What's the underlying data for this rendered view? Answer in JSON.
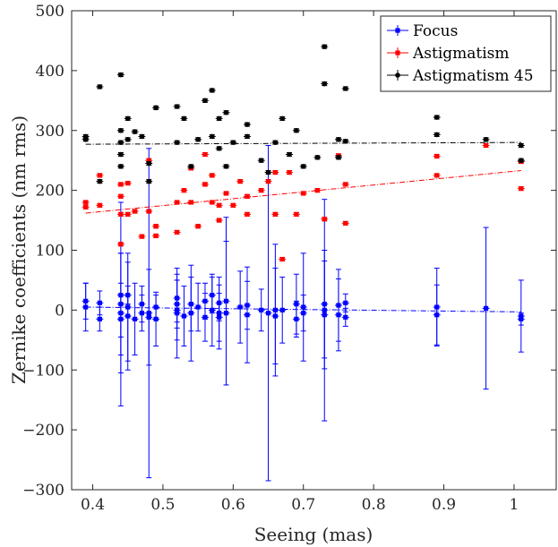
{
  "chart_data": {
    "type": "scatter",
    "xlabel": "Seeing (mas)",
    "ylabel": "Zernike coefficients (nm rms)",
    "xlim": [
      0.37,
      1.06
    ],
    "ylim": [
      -300,
      500
    ],
    "xticks": [
      0.4,
      0.5,
      0.6,
      0.7,
      0.8,
      0.9,
      1
    ],
    "xtick_labels": [
      "0.4",
      "0.5",
      "0.6",
      "0.7",
      "0.8",
      "0.9",
      "1"
    ],
    "yticks": [
      -300,
      -200,
      -100,
      0,
      100,
      200,
      300,
      400,
      500
    ],
    "ytick_labels": [
      "−300",
      "−200",
      "−100",
      "0",
      "100",
      "200",
      "300",
      "400",
      "500"
    ],
    "grid": false,
    "legend_position": "top-right",
    "series": [
      {
        "name": "Focus",
        "color": "#0000ff",
        "marker": "square",
        "fit": [
          [
            0.39,
            5
          ],
          [
            1.01,
            -3
          ]
        ],
        "points": [
          [
            0.39,
            15,
            30
          ],
          [
            0.39,
            5,
            40
          ],
          [
            0.41,
            12,
            20
          ],
          [
            0.41,
            -15,
            20
          ],
          [
            0.44,
            25,
            70
          ],
          [
            0.44,
            10,
            170
          ],
          [
            0.44,
            -5,
            100
          ],
          [
            0.44,
            -15,
            60
          ],
          [
            0.45,
            25,
            15
          ],
          [
            0.45,
            5,
            90
          ],
          [
            0.45,
            -10,
            90
          ],
          [
            0.46,
            -15,
            60
          ],
          [
            0.47,
            10,
            30
          ],
          [
            0.47,
            -5,
            30
          ],
          [
            0.48,
            -5,
            275
          ],
          [
            0.48,
            -12,
            80
          ],
          [
            0.49,
            5,
            20
          ],
          [
            0.49,
            -15,
            45
          ],
          [
            0.52,
            20,
            40
          ],
          [
            0.52,
            10,
            40
          ],
          [
            0.52,
            0,
            50
          ],
          [
            0.52,
            -5,
            75
          ],
          [
            0.53,
            -10,
            50
          ],
          [
            0.54,
            10,
            45
          ],
          [
            0.54,
            -5,
            80
          ],
          [
            0.55,
            5,
            40
          ],
          [
            0.56,
            15,
            30
          ],
          [
            0.56,
            -12,
            40
          ],
          [
            0.57,
            25,
            30
          ],
          [
            0.57,
            0,
            60
          ],
          [
            0.58,
            12,
            30
          ],
          [
            0.58,
            -5,
            60
          ],
          [
            0.58,
            -12,
            40
          ],
          [
            0.59,
            15,
            140
          ],
          [
            0.59,
            -5,
            120
          ],
          [
            0.61,
            5,
            60
          ],
          [
            0.62,
            8,
            40
          ],
          [
            0.62,
            -8,
            80
          ],
          [
            0.64,
            0,
            35
          ],
          [
            0.65,
            -5,
            280
          ],
          [
            0.66,
            0,
            110
          ],
          [
            0.66,
            -10,
            80
          ],
          [
            0.67,
            0,
            55
          ],
          [
            0.69,
            10,
            50
          ],
          [
            0.69,
            -15,
            30
          ],
          [
            0.7,
            5,
            90
          ],
          [
            0.7,
            -5,
            30
          ],
          [
            0.73,
            10,
            90
          ],
          [
            0.73,
            0,
            185
          ],
          [
            0.73,
            -8,
            90
          ],
          [
            0.75,
            8,
            60
          ],
          [
            0.75,
            -8,
            60
          ],
          [
            0.76,
            12,
            15
          ],
          [
            0.76,
            -12,
            15
          ],
          [
            0.89,
            5,
            65
          ],
          [
            0.89,
            -8,
            50
          ],
          [
            0.96,
            3,
            135
          ],
          [
            1.01,
            -10,
            60
          ],
          [
            1.01,
            -15,
            10
          ]
        ]
      },
      {
        "name": "Astigmatism",
        "color": "#ff0000",
        "marker": "square",
        "fit": [
          [
            0.39,
            162
          ],
          [
            1.01,
            233
          ]
        ],
        "points": [
          [
            0.39,
            180,
            3
          ],
          [
            0.39,
            172,
            3
          ],
          [
            0.41,
            225,
            3
          ],
          [
            0.41,
            175,
            3
          ],
          [
            0.44,
            210,
            3
          ],
          [
            0.44,
            190,
            3
          ],
          [
            0.44,
            160,
            3
          ],
          [
            0.44,
            110,
            3
          ],
          [
            0.45,
            212,
            3
          ],
          [
            0.45,
            160,
            3
          ],
          [
            0.46,
            165,
            3
          ],
          [
            0.47,
            123,
            3
          ],
          [
            0.48,
            250,
            3
          ],
          [
            0.48,
            165,
            3
          ],
          [
            0.49,
            140,
            3
          ],
          [
            0.49,
            124,
            3
          ],
          [
            0.52,
            180,
            3
          ],
          [
            0.52,
            130,
            3
          ],
          [
            0.53,
            200,
            3
          ],
          [
            0.54,
            237,
            3
          ],
          [
            0.54,
            180,
            3
          ],
          [
            0.55,
            140,
            3
          ],
          [
            0.56,
            260,
            3
          ],
          [
            0.56,
            210,
            3
          ],
          [
            0.57,
            225,
            3
          ],
          [
            0.57,
            180,
            3
          ],
          [
            0.58,
            175,
            3
          ],
          [
            0.58,
            150,
            3
          ],
          [
            0.59,
            195,
            3
          ],
          [
            0.6,
            175,
            3
          ],
          [
            0.61,
            215,
            3
          ],
          [
            0.62,
            190,
            3
          ],
          [
            0.62,
            160,
            3
          ],
          [
            0.64,
            200,
            3
          ],
          [
            0.65,
            215,
            3
          ],
          [
            0.66,
            230,
            3
          ],
          [
            0.66,
            160,
            3
          ],
          [
            0.67,
            85,
            3
          ],
          [
            0.68,
            230,
            3
          ],
          [
            0.69,
            160,
            3
          ],
          [
            0.7,
            195,
            3
          ],
          [
            0.72,
            200,
            3
          ],
          [
            0.73,
            152,
            3
          ],
          [
            0.75,
            258,
            3
          ],
          [
            0.76,
            210,
            3
          ],
          [
            0.76,
            145,
            3
          ],
          [
            0.89,
            257,
            3
          ],
          [
            0.89,
            225,
            3
          ],
          [
            0.96,
            275,
            3
          ],
          [
            1.01,
            248,
            3
          ],
          [
            1.01,
            203,
            3
          ]
        ]
      },
      {
        "name": "Astigmatism 45",
        "color": "#000000",
        "marker": "dot",
        "fit": [
          [
            0.39,
            277
          ],
          [
            1.01,
            280
          ]
        ],
        "points": [
          [
            0.39,
            290,
            3
          ],
          [
            0.39,
            285,
            3
          ],
          [
            0.41,
            373,
            3
          ],
          [
            0.41,
            215,
            3
          ],
          [
            0.44,
            393,
            3
          ],
          [
            0.44,
            300,
            3
          ],
          [
            0.44,
            280,
            3
          ],
          [
            0.44,
            260,
            3
          ],
          [
            0.44,
            240,
            3
          ],
          [
            0.45,
            320,
            3
          ],
          [
            0.45,
            285,
            3
          ],
          [
            0.46,
            298,
            3
          ],
          [
            0.47,
            290,
            3
          ],
          [
            0.48,
            245,
            3
          ],
          [
            0.48,
            215,
            3
          ],
          [
            0.49,
            338,
            3
          ],
          [
            0.52,
            340,
            3
          ],
          [
            0.52,
            280,
            3
          ],
          [
            0.53,
            320,
            3
          ],
          [
            0.54,
            240,
            3
          ],
          [
            0.55,
            285,
            3
          ],
          [
            0.56,
            350,
            3
          ],
          [
            0.57,
            367,
            3
          ],
          [
            0.57,
            290,
            3
          ],
          [
            0.58,
            320,
            3
          ],
          [
            0.58,
            270,
            3
          ],
          [
            0.59,
            330,
            3
          ],
          [
            0.59,
            240,
            3
          ],
          [
            0.6,
            280,
            3
          ],
          [
            0.62,
            310,
            3
          ],
          [
            0.62,
            290,
            3
          ],
          [
            0.64,
            250,
            3
          ],
          [
            0.65,
            230,
            3
          ],
          [
            0.66,
            280,
            3
          ],
          [
            0.67,
            320,
            3
          ],
          [
            0.68,
            260,
            3
          ],
          [
            0.69,
            300,
            3
          ],
          [
            0.7,
            240,
            3
          ],
          [
            0.72,
            255,
            3
          ],
          [
            0.73,
            440,
            3
          ],
          [
            0.73,
            378,
            3
          ],
          [
            0.75,
            285,
            3
          ],
          [
            0.75,
            255,
            3
          ],
          [
            0.76,
            370,
            3
          ],
          [
            0.76,
            282,
            3
          ],
          [
            0.89,
            322,
            3
          ],
          [
            0.89,
            293,
            3
          ],
          [
            0.96,
            285,
            3
          ],
          [
            1.01,
            275,
            3
          ],
          [
            1.01,
            250,
            3
          ]
        ]
      }
    ]
  }
}
